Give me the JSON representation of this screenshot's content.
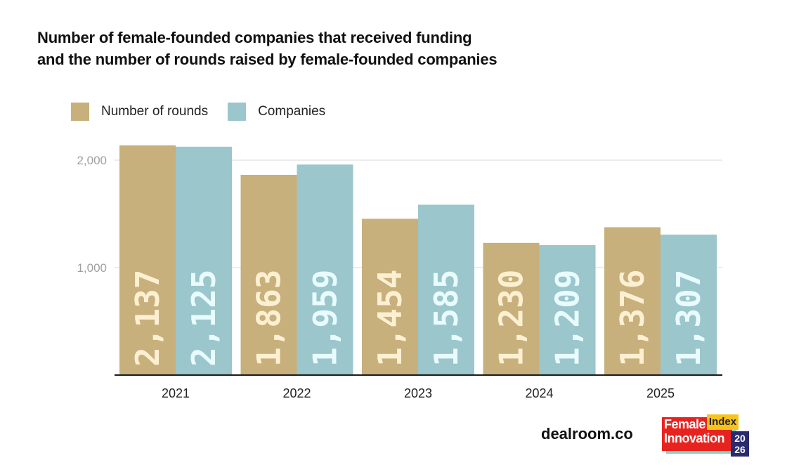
{
  "chart_data": {
    "type": "bar",
    "title": "Number of female-founded companies that received funding and the number of rounds raised by female-founded companies",
    "title_lines": [
      "Number of female-founded companies that received funding",
      "and the number of rounds raised by female-founded companies"
    ],
    "xlabel": "",
    "ylabel": "",
    "categories": [
      "2021",
      "2022",
      "2023",
      "2024",
      "2025"
    ],
    "series": [
      {
        "name": "Number of rounds",
        "color": "#c8b07c",
        "label_color": "#fdf0d2",
        "values": [
          2137,
          1863,
          1454,
          1230,
          1376
        ],
        "labels": [
          "2,137",
          "1,863",
          "1,454",
          "1,230",
          "1,376"
        ]
      },
      {
        "name": "Companies",
        "color": "#9bc6cb",
        "label_color": "#e8fbff",
        "values": [
          2125,
          1959,
          1585,
          1209,
          1307
        ],
        "labels": [
          "2,125",
          "1,959",
          "1,585",
          "1,209",
          "1,307"
        ]
      }
    ],
    "yticks": [
      1000,
      2000
    ],
    "ytick_labels": [
      "1,000",
      "2,000"
    ],
    "ylim": [
      0,
      2000
    ],
    "grid": true,
    "legend_position": "top-left"
  },
  "footer": {
    "brand": "dealroom.co",
    "logo": {
      "line1": "Female",
      "line2": "Innovation",
      "tag": "Index",
      "year_top": "20",
      "year_bottom": "26"
    }
  }
}
